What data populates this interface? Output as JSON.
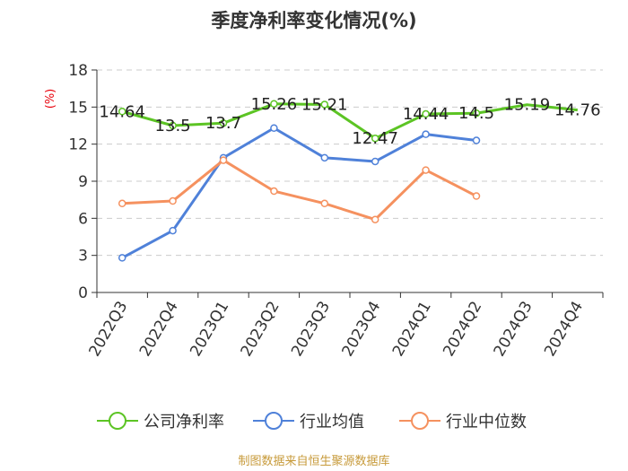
{
  "chart_data": {
    "type": "line",
    "title": "季度净利率变化情况(%)",
    "ylabel": "(%)",
    "ylim": [
      0,
      18
    ],
    "yticks": [
      0,
      3,
      6,
      9,
      12,
      15,
      18
    ],
    "grid": true,
    "legend_position": "bottom",
    "categories": [
      "2022Q3",
      "2022Q4",
      "2023Q1",
      "2023Q2",
      "2023Q3",
      "2023Q4",
      "2024Q1",
      "2024Q2",
      "2024Q3",
      "2024Q4"
    ],
    "series": [
      {
        "name": "公司净利率",
        "color": "#5cc424",
        "values": [
          14.64,
          13.5,
          13.7,
          15.26,
          15.21,
          12.47,
          14.44,
          14.5,
          15.19,
          14.76
        ],
        "labels": [
          "14.64",
          "13.5",
          "13.7",
          "15.26",
          "15.21",
          "12.47",
          "14.44",
          "14.5",
          "15.19",
          "14.76"
        ],
        "markers": [
          true,
          true,
          true,
          true,
          true,
          true,
          true,
          true,
          false,
          false
        ]
      },
      {
        "name": "行业均值",
        "color": "#4f81d9",
        "values": [
          2.8,
          5.0,
          10.9,
          13.3,
          10.9,
          10.6,
          12.8,
          12.3,
          null,
          null
        ],
        "markers": [
          true,
          true,
          true,
          true,
          true,
          true,
          true,
          true,
          false,
          false
        ]
      },
      {
        "name": "行业中位数",
        "color": "#f5915f",
        "values": [
          7.2,
          7.4,
          10.7,
          8.2,
          7.2,
          5.9,
          9.9,
          7.8,
          null,
          null
        ],
        "markers": [
          true,
          true,
          true,
          true,
          true,
          true,
          true,
          true,
          false,
          false
        ]
      }
    ],
    "source": "制图数据来自恒生聚源数据库"
  }
}
